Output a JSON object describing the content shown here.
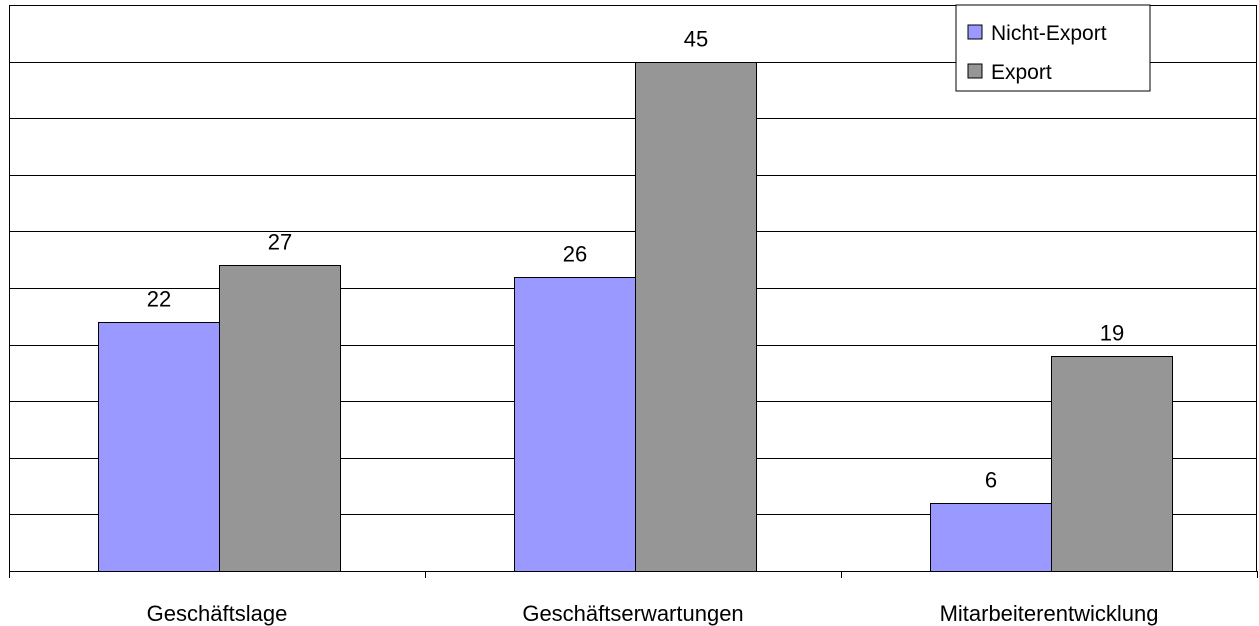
{
  "chart_data": {
    "type": "bar",
    "title": "",
    "xlabel": "",
    "ylabel": "",
    "categories": [
      "Geschäftslage",
      "Geschäftserwartungen",
      "Mitarbeiterentwicklung"
    ],
    "series": [
      {
        "name": "Nicht-Export",
        "color": "#9999ff",
        "values": [
          22,
          26,
          6
        ]
      },
      {
        "name": "Export",
        "color": "#969696",
        "values": [
          27,
          45,
          19
        ]
      }
    ],
    "ylim": [
      0,
      50
    ],
    "y_gridline_step": 5,
    "y_tick_labels_shown": false,
    "grid": true,
    "legend_position": "top-right"
  }
}
